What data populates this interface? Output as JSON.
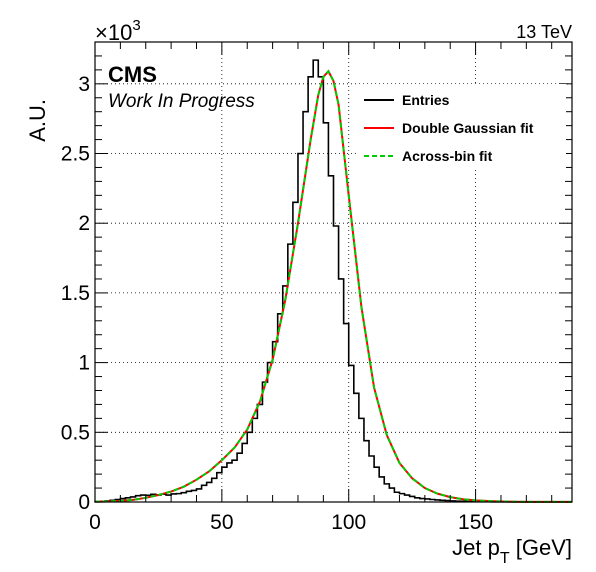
{
  "chart_data": {
    "type": "line",
    "xlabel_main": "Jet p",
    "xlabel_sub": "T",
    "xlabel_unit": " [GeV]",
    "ylabel": "A.U.",
    "y_exponent_prefix": "×10",
    "y_exponent": "3",
    "xlim": [
      0,
      188
    ],
    "ylim": [
      0,
      3.3
    ],
    "x_ticks": [
      0,
      50,
      100,
      150
    ],
    "x_tick_labels": [
      "0",
      "50",
      "100",
      "150"
    ],
    "y_ticks": [
      0,
      0.5,
      1,
      1.5,
      2,
      2.5,
      3
    ],
    "y_tick_labels": [
      "0",
      "0.5",
      "1",
      "1.5",
      "2",
      "2.5",
      "3"
    ],
    "grid": true,
    "legend_position": "top-right",
    "experiment": "CMS",
    "status": "Work In Progress",
    "energy": "13 TeV",
    "bin_width": 2,
    "series": [
      {
        "name": "Entries",
        "style": "histogram",
        "color": "#000000",
        "bin_start": 0,
        "values": [
          0.002,
          0.005,
          0.008,
          0.012,
          0.018,
          0.025,
          0.03,
          0.036,
          0.045,
          0.05,
          0.048,
          0.055,
          0.05,
          0.056,
          0.05,
          0.058,
          0.06,
          0.067,
          0.077,
          0.083,
          0.094,
          0.12,
          0.14,
          0.17,
          0.21,
          0.25,
          0.28,
          0.3,
          0.35,
          0.42,
          0.5,
          0.6,
          0.7,
          0.86,
          1.0,
          1.15,
          1.35,
          1.55,
          1.85,
          2.15,
          2.5,
          2.8,
          3.05,
          3.17,
          3.05,
          2.72,
          2.34,
          1.98,
          1.6,
          1.28,
          0.98,
          0.78,
          0.6,
          0.44,
          0.33,
          0.25,
          0.18,
          0.13,
          0.1,
          0.07,
          0.06,
          0.05,
          0.04,
          0.03,
          0.025,
          0.022,
          0.018,
          0.015,
          0.012,
          0.01,
          0.008,
          0.006,
          0.005,
          0.004,
          0.003,
          0.003,
          0.002,
          0.002,
          0.001,
          0.001,
          0.001,
          0.001,
          0.001,
          0.001,
          0.001,
          0.001,
          0.001,
          0.001,
          0.001,
          0.001,
          0.001,
          0.001,
          0.001,
          0.001
        ]
      },
      {
        "name": "Double Gaussian fit",
        "style": "line",
        "color": "#ff0000",
        "x": [
          0,
          5,
          10,
          15,
          20,
          25,
          30,
          35,
          40,
          45,
          50,
          55,
          60,
          65,
          70,
          75,
          80,
          85,
          88,
          90,
          92,
          94,
          96,
          100,
          105,
          110,
          115,
          120,
          125,
          130,
          135,
          140,
          145,
          150,
          155,
          160,
          165,
          170,
          175,
          180,
          188
        ],
        "y": [
          0.002,
          0.004,
          0.008,
          0.015,
          0.03,
          0.05,
          0.075,
          0.11,
          0.16,
          0.22,
          0.3,
          0.39,
          0.52,
          0.72,
          1.02,
          1.45,
          2.0,
          2.6,
          2.92,
          3.05,
          3.09,
          3.02,
          2.85,
          2.2,
          1.4,
          0.82,
          0.48,
          0.28,
          0.17,
          0.1,
          0.06,
          0.035,
          0.02,
          0.012,
          0.007,
          0.004,
          0.002,
          0.001,
          0.001,
          0.001,
          0.0005
        ]
      },
      {
        "name": "Across-bin fit",
        "style": "dashed",
        "color": "#00cc00",
        "x": [
          0,
          5,
          10,
          15,
          20,
          25,
          30,
          35,
          40,
          45,
          50,
          55,
          60,
          65,
          70,
          75,
          80,
          85,
          88,
          90,
          92,
          94,
          96,
          100,
          105,
          110,
          115,
          120,
          125,
          130,
          135,
          140,
          145,
          150,
          155,
          160,
          165,
          170,
          175,
          180,
          188
        ],
        "y": [
          0.002,
          0.004,
          0.008,
          0.015,
          0.03,
          0.05,
          0.075,
          0.11,
          0.16,
          0.22,
          0.3,
          0.39,
          0.52,
          0.72,
          1.02,
          1.45,
          2.0,
          2.6,
          2.92,
          3.05,
          3.09,
          3.02,
          2.85,
          2.2,
          1.4,
          0.82,
          0.48,
          0.28,
          0.17,
          0.1,
          0.06,
          0.035,
          0.02,
          0.012,
          0.007,
          0.004,
          0.002,
          0.001,
          0.001,
          0.001,
          0.0005
        ]
      }
    ]
  }
}
